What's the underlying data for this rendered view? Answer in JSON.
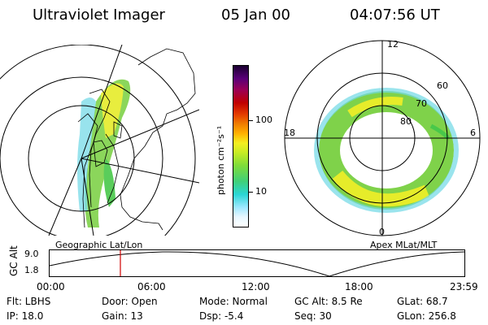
{
  "header": {
    "instrument": "Ultraviolet Imager",
    "date": "05 Jan 00",
    "time": "04:07:56 UT"
  },
  "colorbar": {
    "unit_label": "photon cm⁻²s⁻¹",
    "ticks": [
      "100",
      "10"
    ]
  },
  "left_panel": {
    "caption": "Geographic Lat/Lon"
  },
  "right_panel": {
    "caption": "Apex MLat/MLT",
    "mlt_labels": {
      "top": "12",
      "left": "18",
      "right": "6",
      "bottom": "0"
    },
    "lat_labels": [
      "60",
      "70",
      "80"
    ]
  },
  "altitude_plot": {
    "ylabel": "GC Alt",
    "y_ticks": [
      "9.0",
      "1.8"
    ],
    "x_ticks": [
      "00:00",
      "06:00",
      "12:00",
      "18:00",
      "23:59"
    ],
    "marker_time": "04:07:56"
  },
  "info": {
    "flt": "Flt: LBHS",
    "ip": "IP: 18.0",
    "door": "Door: Open",
    "gain": "Gain: 13",
    "mode": "Mode: Normal",
    "dsp": "Dsp:    -5.4",
    "gcalt": "GC Alt: 8.5 Re",
    "seq": "Seq: 30",
    "glat": "GLat:  68.7",
    "glon": "GLon: 256.8"
  },
  "colors": {
    "marker": "#d00000",
    "aurora_green": "#49c84a",
    "aurora_yellow": "#e6ec2a",
    "aurora_cyan": "#6fd8e6"
  }
}
